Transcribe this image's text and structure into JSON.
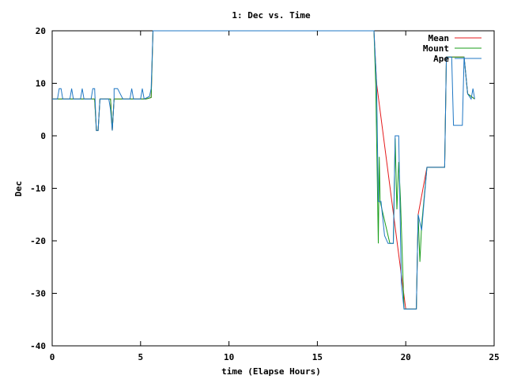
{
  "chart_data": {
    "type": "line",
    "title": "1: Dec vs. Time",
    "xlabel": "time (Elapse Hours)",
    "ylabel": "Dec",
    "xlim": [
      0,
      25
    ],
    "ylim": [
      -40,
      20
    ],
    "xticks": [
      0,
      5,
      10,
      15,
      20,
      25
    ],
    "yticks": [
      -40,
      -30,
      -20,
      -10,
      0,
      10,
      20
    ],
    "grid": false,
    "legend_position": "top-right",
    "series": [
      {
        "name": "Mean",
        "color": "#e41a1c",
        "points": [
          [
            0,
            7
          ],
          [
            2.4,
            7
          ],
          [
            2.5,
            1
          ],
          [
            2.6,
            1
          ],
          [
            2.7,
            7
          ],
          [
            3.3,
            7
          ],
          [
            3.4,
            1
          ],
          [
            3.5,
            7
          ],
          [
            5.3,
            7
          ],
          [
            5.6,
            7.3
          ],
          [
            5.7,
            20
          ],
          [
            6.5,
            20
          ],
          [
            18.2,
            20
          ],
          [
            18.35,
            10
          ],
          [
            20.0,
            -33
          ],
          [
            20.6,
            -33
          ],
          [
            20.7,
            -15
          ],
          [
            21.2,
            -6
          ],
          [
            22.2,
            -6
          ],
          [
            22.3,
            15
          ],
          [
            23.3,
            15
          ],
          [
            23.5,
            8
          ],
          [
            23.9,
            7
          ]
        ]
      },
      {
        "name": "Mount",
        "color": "#1a9e1a",
        "points": [
          [
            0,
            7
          ],
          [
            2.4,
            7
          ],
          [
            2.5,
            1
          ],
          [
            2.6,
            1
          ],
          [
            2.7,
            7
          ],
          [
            3.3,
            7
          ],
          [
            3.4,
            1
          ],
          [
            3.5,
            7
          ],
          [
            5.3,
            7
          ],
          [
            5.6,
            7.3
          ],
          [
            5.7,
            20
          ],
          [
            18.2,
            20
          ],
          [
            18.3,
            10
          ],
          [
            18.4,
            -10
          ],
          [
            18.45,
            -20.5
          ],
          [
            18.5,
            -4
          ],
          [
            18.55,
            -12.5
          ],
          [
            19.1,
            -20.5
          ],
          [
            19.3,
            -20.5
          ],
          [
            19.4,
            -0.5
          ],
          [
            19.5,
            -14
          ],
          [
            19.6,
            -5
          ],
          [
            19.7,
            -12
          ],
          [
            19.9,
            -33
          ],
          [
            20.6,
            -33
          ],
          [
            20.7,
            -15
          ],
          [
            20.8,
            -24
          ],
          [
            20.9,
            -17
          ],
          [
            21.2,
            -6
          ],
          [
            22.2,
            -6
          ],
          [
            22.3,
            15
          ],
          [
            23.3,
            15
          ],
          [
            23.5,
            8
          ],
          [
            23.9,
            7
          ]
        ]
      },
      {
        "name": "Ape",
        "color": "#1f77c4",
        "points": [
          [
            0,
            7
          ],
          [
            0.3,
            7
          ],
          [
            0.4,
            9
          ],
          [
            0.5,
            9
          ],
          [
            0.6,
            7
          ],
          [
            1.0,
            7
          ],
          [
            1.1,
            9
          ],
          [
            1.2,
            7
          ],
          [
            1.6,
            7
          ],
          [
            1.7,
            9
          ],
          [
            1.8,
            7
          ],
          [
            2.2,
            7
          ],
          [
            2.3,
            9
          ],
          [
            2.4,
            9
          ],
          [
            2.5,
            1
          ],
          [
            2.6,
            1
          ],
          [
            2.7,
            7
          ],
          [
            3.2,
            7
          ],
          [
            3.3,
            5
          ],
          [
            3.4,
            1
          ],
          [
            3.5,
            7
          ],
          [
            3.5,
            9
          ],
          [
            3.7,
            9
          ],
          [
            4.0,
            7
          ],
          [
            4.4,
            7
          ],
          [
            4.5,
            9
          ],
          [
            4.6,
            7
          ],
          [
            5.0,
            7
          ],
          [
            5.1,
            9
          ],
          [
            5.2,
            7
          ],
          [
            5.5,
            7.5
          ],
          [
            5.6,
            9
          ],
          [
            5.7,
            20
          ],
          [
            18.2,
            20
          ],
          [
            18.35,
            10
          ],
          [
            18.45,
            -12.5
          ],
          [
            18.6,
            -12.5
          ],
          [
            18.8,
            -19
          ],
          [
            19.0,
            -20.5
          ],
          [
            19.3,
            -20.5
          ],
          [
            19.4,
            0
          ],
          [
            19.6,
            0
          ],
          [
            19.75,
            -28
          ],
          [
            19.9,
            -33
          ],
          [
            20.6,
            -33
          ],
          [
            20.7,
            -15
          ],
          [
            20.9,
            -18
          ],
          [
            21.2,
            -6
          ],
          [
            22.2,
            -6
          ],
          [
            22.3,
            15
          ],
          [
            22.6,
            15
          ],
          [
            22.7,
            2
          ],
          [
            23.2,
            2
          ],
          [
            23.3,
            15
          ],
          [
            23.5,
            8
          ],
          [
            23.7,
            7
          ],
          [
            23.8,
            9
          ],
          [
            23.9,
            7
          ]
        ]
      }
    ]
  }
}
